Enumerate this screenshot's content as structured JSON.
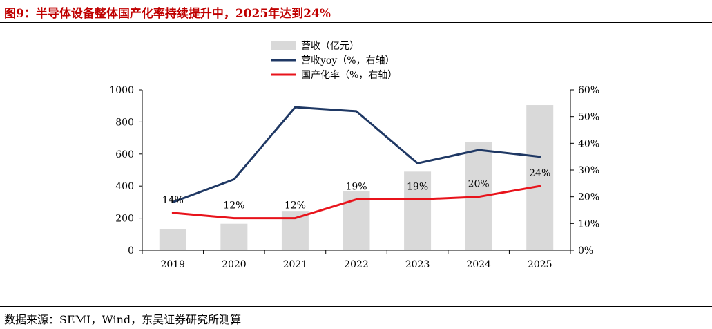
{
  "header": {
    "title": "图9：半导体设备整体国产化率持续提升中，2025年达到24%"
  },
  "footer": {
    "source": "数据来源：SEMI，Wind，东吴证券研究所测算"
  },
  "colors": {
    "bar": "#d9d9d9",
    "yoy_line": "#1f3864",
    "rate_line": "#e8131b",
    "title": "#c00000"
  },
  "chart_data": {
    "type": "bar",
    "categories": [
      "2019",
      "2020",
      "2021",
      "2022",
      "2023",
      "2024",
      "2025"
    ],
    "series": [
      {
        "name": "营收（亿元）",
        "type": "bar",
        "axis": "left",
        "values": [
          130,
          165,
          245,
          370,
          490,
          675,
          905
        ]
      },
      {
        "name": "营收yoy（%，右轴）",
        "type": "line",
        "axis": "right",
        "values": [
          18,
          26.5,
          53.5,
          52,
          32.5,
          37.5,
          35
        ]
      },
      {
        "name": "国产化率（%，右轴）",
        "type": "line",
        "axis": "right",
        "values": [
          14,
          12,
          12,
          19,
          19,
          20,
          24
        ],
        "labels": [
          "14%",
          "12%",
          "12%",
          "19%",
          "19%",
          "20%",
          "24%"
        ]
      }
    ],
    "y_left": {
      "min": 0,
      "max": 1000,
      "ticks": [
        "0",
        "200",
        "400",
        "600",
        "800",
        "1000"
      ]
    },
    "y_right": {
      "min": 0,
      "max": 60,
      "ticks": [
        "0%",
        "10%",
        "20%",
        "30%",
        "40%",
        "50%",
        "60%"
      ]
    },
    "legend": {
      "position": "top-center"
    },
    "grid": false
  }
}
